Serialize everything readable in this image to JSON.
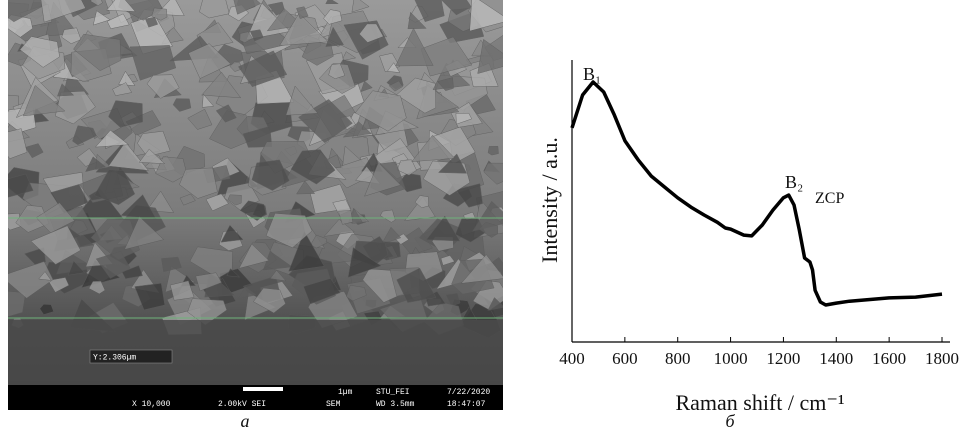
{
  "sem_image": {
    "measure_label": "Y:2.306µm",
    "scale_label": "1µm",
    "operator": "STU_FEI",
    "date": "7/22/2020",
    "magnification": "X 10,000",
    "voltage": "2.00kV SEI",
    "mode": "SEM",
    "working_distance": "WD 3.5mm",
    "time": "18:47:07"
  },
  "captions": [
    "а",
    "б"
  ],
  "chart_data": {
    "type": "line",
    "x_label": "Raman shift / cm⁻¹",
    "y_label": "Intensity / a.u.",
    "annotations": [
      "B₁",
      "B₂",
      "ZCP"
    ],
    "color": "#000000",
    "x": [
      400,
      440,
      480,
      520,
      560,
      600,
      650,
      700,
      750,
      800,
      850,
      900,
      950,
      980,
      1000,
      1050,
      1080,
      1120,
      1160,
      1200,
      1220,
      1240,
      1260,
      1280,
      1300,
      1310,
      1320,
      1340,
      1360,
      1400,
      1450,
      1500,
      1550,
      1600,
      1700,
      1800
    ],
    "values": [
      78.7,
      90.8,
      95.6,
      91.9,
      83.5,
      74,
      67,
      61,
      57,
      53,
      49.6,
      46.7,
      44,
      41.9,
      41.5,
      39.3,
      39,
      43,
      48.5,
      53,
      54,
      50.4,
      41.2,
      30.9,
      29.4,
      26.5,
      19,
      14.7,
      13.6,
      14.3,
      15,
      15.4,
      15.8,
      16.2,
      16.5,
      17.6
    ],
    "xlim": [
      400,
      1800
    ],
    "ylim": [
      0,
      100
    ],
    "xticks": [
      400,
      600,
      800,
      1000,
      1200,
      1400,
      1600,
      1800
    ]
  }
}
